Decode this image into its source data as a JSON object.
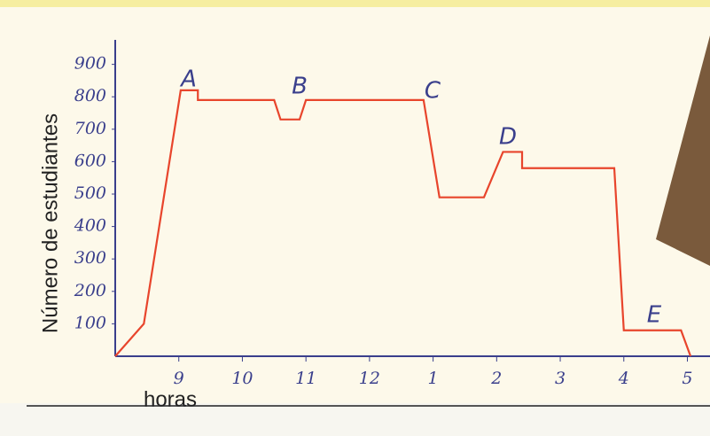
{
  "chart_data": {
    "type": "line",
    "y_label": "Número de estudiantes",
    "x_label": "horas",
    "x": [
      8,
      8.45,
      9.03,
      9.3,
      9.3,
      10.5,
      10.6,
      10.9,
      11.0,
      12.85,
      13.1,
      13.8,
      14.1,
      14.4,
      14.4,
      15.85,
      16.0,
      16.9,
      17.05
    ],
    "series": [
      {
        "color": "#e8452c",
        "values": [
          0,
          100,
          820,
          820,
          790,
          790,
          730,
          730,
          790,
          790,
          490,
          490,
          630,
          630,
          580,
          580,
          80,
          80,
          0
        ]
      }
    ],
    "annotations": [
      "A",
      "B",
      "C",
      "D",
      "E"
    ],
    "xlim": [
      8,
      17.3
    ],
    "ylim": [
      0,
      970
    ],
    "xticks": [
      9,
      10,
      11,
      12,
      {
        "value": 13,
        "label": "1"
      },
      {
        "value": 14,
        "label": "2"
      },
      {
        "value": 15,
        "label": "3"
      },
      {
        "value": 16,
        "label": "4"
      },
      {
        "value": 17,
        "label": "5"
      }
    ],
    "yticks": [
      100,
      200,
      300,
      400,
      500,
      600,
      700,
      800,
      900
    ]
  }
}
